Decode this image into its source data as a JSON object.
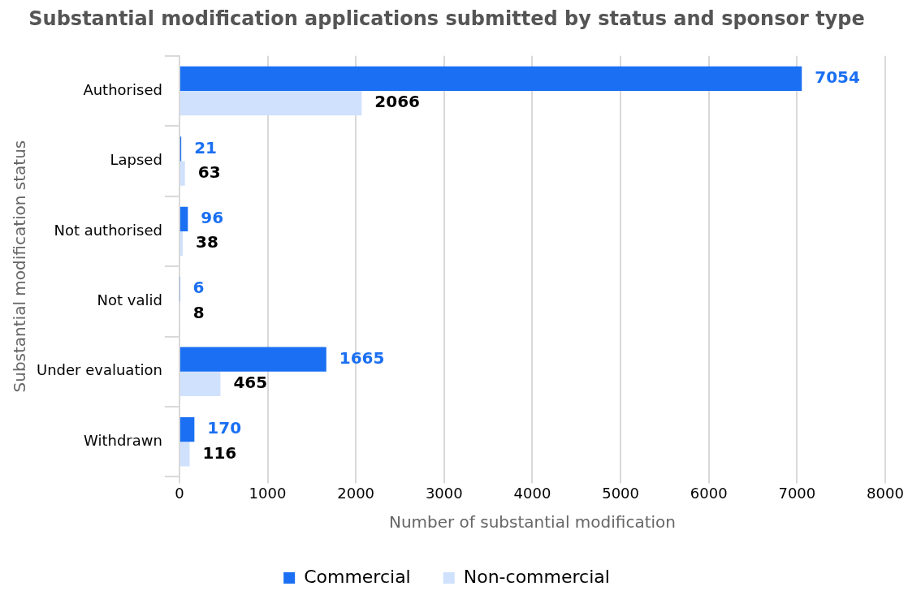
{
  "chart_data": {
    "type": "bar",
    "orientation": "horizontal",
    "title": "Substantial modification applications submitted by status and sponsor type",
    "xlabel": "Number of substantial modification",
    "ylabel": "Substantial modification status",
    "categories": [
      "Authorised",
      "Lapsed",
      "Not authorised",
      "Not valid",
      "Under evaluation",
      "Withdrawn"
    ],
    "series": [
      {
        "name": "Commercial",
        "color": "#1a6ff2",
        "values": [
          7054,
          21,
          96,
          6,
          1665,
          170
        ]
      },
      {
        "name": "Non-commercial",
        "color": "#cfe1fc",
        "values": [
          2066,
          63,
          38,
          8,
          465,
          116
        ]
      }
    ],
    "xlim": [
      0,
      8000
    ],
    "xticks": [
      0,
      1000,
      2000,
      3000,
      4000,
      5000,
      6000,
      7000,
      8000
    ],
    "grid": "x",
    "legend": "bottom",
    "data_labels": true
  }
}
